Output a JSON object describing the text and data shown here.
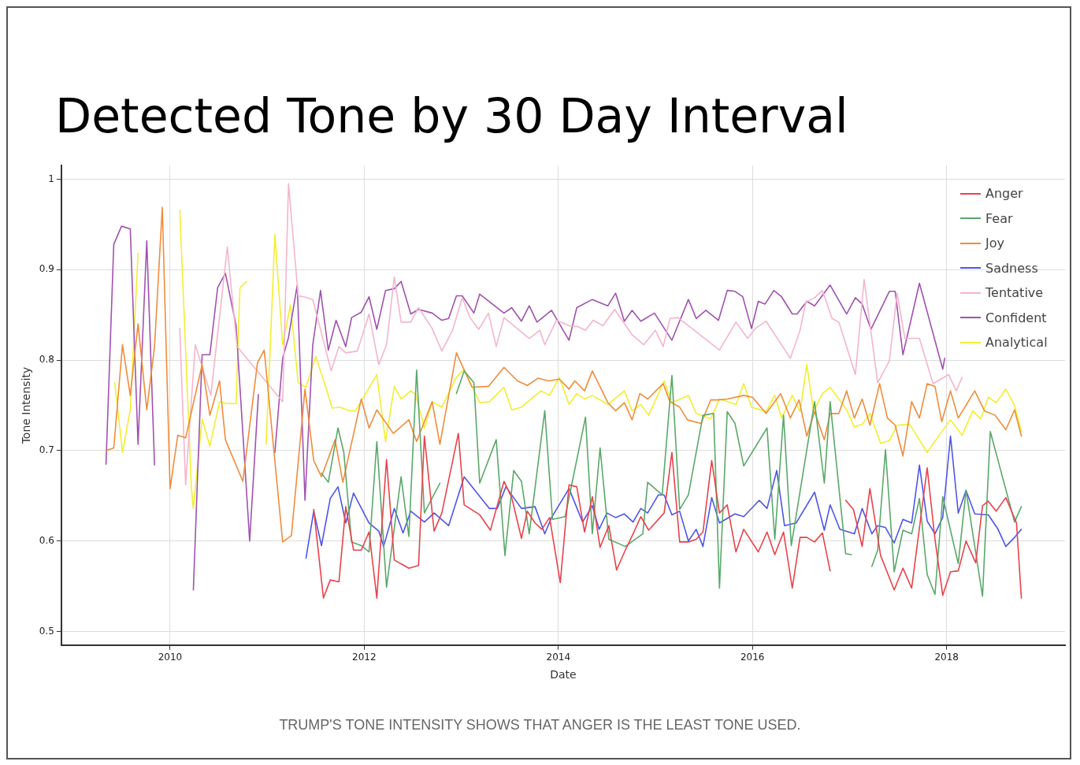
{
  "chart_data": {
    "type": "line",
    "title": "Detected Tone by 30 Day Interval",
    "xlabel": "Date",
    "ylabel": "Tone Intensity",
    "annotations": [
      "TRUMP'S TONE INTENSITY SHOWS THAT ANGER IS THE LEAST TONE USED."
    ],
    "xlim": [
      2008.88,
      2019.22
    ],
    "xticks": [
      2010,
      2012,
      2014,
      2016,
      2018
    ],
    "ylim": [
      0.485,
      1.015
    ],
    "yticks": [
      0.5,
      0.6,
      0.7,
      0.8,
      0.9,
      1
    ],
    "grid": true,
    "legend": "top right",
    "marker": "none",
    "line_style": "solid",
    "series": [
      {
        "name": "Anger",
        "color": "#e8434a",
        "x": [
          2011.48,
          2011.58,
          2011.65,
          2011.74,
          2011.81,
          2011.89,
          2011.97,
          2012.05,
          2012.13,
          2012.23,
          2012.31,
          2012.46,
          2012.56,
          2012.62,
          2012.72,
          2012.8,
          2012.97,
          2013.03,
          2013.19,
          2013.3,
          2013.44,
          2013.52,
          2013.62,
          2013.68,
          2013.76,
          2013.83,
          2013.91,
          2014.02,
          2014.11,
          2014.19,
          2014.27,
          2014.35,
          2014.43,
          2014.52,
          2014.6,
          2014.69,
          2014.77,
          2014.85,
          2014.93,
          2015.09,
          2015.17,
          2015.25,
          2015.34,
          2015.42,
          2015.49,
          2015.58,
          2015.66,
          2015.74,
          2015.83,
          2015.91,
          2016.06,
          2016.15,
          2016.23,
          2016.32,
          2016.41,
          2016.49,
          2016.56,
          2016.64,
          2016.72,
          2016.8,
          2016.88,
          2016.96,
          2017.04,
          2017.13,
          2017.21,
          2017.32,
          2017.46,
          2017.55,
          2017.64,
          2017.8,
          2017.88,
          2017.96,
          2018.04,
          2018.12,
          2018.2,
          2018.3,
          2018.37,
          2018.43,
          2018.51,
          2018.61,
          2018.72,
          2018.77
        ],
        "values": [
          0.635,
          0.537,
          0.557,
          0.555,
          0.638,
          0.59,
          0.59,
          0.61,
          0.537,
          0.69,
          0.579,
          0.57,
          0.573,
          0.716,
          0.611,
          0.631,
          0.719,
          0.64,
          0.629,
          0.612,
          0.666,
          0.648,
          0.603,
          0.633,
          0.62,
          0.613,
          0.626,
          0.554,
          0.662,
          0.66,
          0.61,
          0.649,
          0.593,
          0.617,
          0.568,
          0.59,
          0.608,
          0.627,
          0.612,
          0.631,
          0.698,
          0.599,
          0.599,
          0.602,
          0.61,
          0.689,
          0.631,
          0.64,
          0.588,
          0.613,
          0.588,
          0.61,
          0.585,
          0.61,
          0.548,
          0.604,
          0.604,
          0.599,
          0.609,
          0.567,
          null,
          0.645,
          0.635,
          0.594,
          0.658,
          0.584,
          0.546,
          0.57,
          0.548,
          0.681,
          0.602,
          0.54,
          0.566,
          0.567,
          0.6,
          0.576,
          0.639,
          0.644,
          0.633,
          0.648,
          0.62,
          0.537
        ]
      },
      {
        "name": "Fear",
        "color": "#5aa86a",
        "x": [
          2011.56,
          2011.63,
          2011.73,
          2011.79,
          2011.87,
          2011.97,
          2012.05,
          2012.13,
          2012.23,
          2012.38,
          2012.46,
          2012.54,
          2012.62,
          2012.78,
          2012.87,
          2012.95,
          2013.03,
          2013.13,
          2013.19,
          2013.36,
          2013.45,
          2013.54,
          2013.62,
          2013.7,
          2013.86,
          2013.94,
          2014.07,
          2014.28,
          2014.35,
          2014.43,
          2014.52,
          2014.69,
          2014.87,
          2014.92,
          2015.07,
          2015.17,
          2015.25,
          2015.34,
          2015.49,
          2015.6,
          2015.66,
          2015.74,
          2015.82,
          2015.91,
          2016.15,
          2016.23,
          2016.32,
          2016.4,
          2016.64,
          2016.74,
          2016.8,
          2016.96,
          2017.02,
          2017.12,
          2017.23,
          2017.29,
          2017.37,
          2017.46,
          2017.55,
          2017.64,
          2017.72,
          2017.8,
          2017.88,
          2017.96,
          2018.12,
          2018.2,
          2018.37,
          2018.45,
          2018.7,
          2018.77
        ],
        "values": [
          0.675,
          0.665,
          0.725,
          0.698,
          0.599,
          0.595,
          0.588,
          0.71,
          0.549,
          0.671,
          0.605,
          0.789,
          0.631,
          0.664,
          null,
          0.763,
          0.788,
          0.775,
          0.664,
          0.712,
          0.584,
          0.678,
          0.666,
          0.608,
          0.744,
          0.624,
          0.627,
          0.737,
          0.608,
          0.703,
          0.602,
          0.594,
          0.608,
          0.665,
          0.651,
          0.783,
          0.635,
          0.651,
          0.739,
          0.741,
          0.548,
          0.743,
          0.73,
          0.683,
          0.725,
          0.602,
          0.739,
          0.595,
          0.754,
          0.664,
          0.754,
          0.586,
          0.585,
          null,
          0.572,
          0.59,
          0.701,
          0.566,
          0.612,
          0.608,
          0.647,
          0.563,
          0.541,
          0.649,
          0.575,
          0.656,
          0.539,
          0.721,
          0.621,
          0.638
        ]
      },
      {
        "name": "Joy",
        "color": "#f08c3c",
        "x": [
          2009.34,
          2009.42,
          2009.51,
          2009.59,
          2009.67,
          2009.76,
          2009.84,
          2009.92,
          2010,
          2010.08,
          2010.16,
          2010.33,
          2010.41,
          2010.51,
          2010.57,
          2010.75,
          2010.9,
          2010.97,
          2011.16,
          2011.25,
          2011.39,
          2011.48,
          2011.56,
          2011.7,
          2011.78,
          2011.97,
          2012.05,
          2012.13,
          2012.3,
          2012.46,
          2012.54,
          2012.7,
          2012.78,
          2012.95,
          2013.11,
          2013.28,
          2013.44,
          2013.58,
          2013.68,
          2013.79,
          2013.9,
          2014.01,
          2014.11,
          2014.17,
          2014.27,
          2014.35,
          2014.51,
          2014.59,
          2014.68,
          2014.76,
          2014.84,
          2014.92,
          2015.08,
          2015.15,
          2015.25,
          2015.33,
          2015.47,
          2015.57,
          2015.64,
          2015.74,
          2015.91,
          2016,
          2016.14,
          2016.29,
          2016.39,
          2016.48,
          2016.56,
          2016.64,
          2016.74,
          2016.8,
          2016.89,
          2016.97,
          2017.05,
          2017.13,
          2017.21,
          2017.31,
          2017.39,
          2017.47,
          2017.55,
          2017.64,
          2017.72,
          2017.8,
          2017.88,
          2017.95,
          2018.04,
          2018.12,
          2018.29,
          2018.39,
          2018.5,
          2018.61,
          2018.7,
          2018.77
        ],
        "values": [
          0.7,
          0.703,
          0.817,
          0.761,
          0.84,
          0.745,
          0.815,
          0.969,
          0.658,
          0.717,
          0.714,
          0.795,
          0.739,
          0.777,
          0.712,
          0.666,
          0.797,
          0.811,
          0.599,
          0.606,
          0.768,
          0.689,
          0.671,
          0.712,
          0.665,
          0.757,
          0.725,
          0.745,
          0.719,
          0.734,
          0.71,
          0.754,
          0.707,
          0.808,
          0.77,
          0.771,
          0.792,
          0.777,
          0.772,
          0.78,
          0.777,
          0.779,
          0.768,
          0.777,
          0.766,
          0.788,
          0.753,
          0.744,
          0.753,
          0.734,
          0.763,
          0.757,
          0.774,
          0.754,
          0.748,
          0.734,
          0.73,
          0.756,
          0.756,
          0.757,
          0.761,
          0.759,
          0.741,
          0.763,
          0.736,
          0.756,
          0.716,
          0.743,
          0.712,
          0.741,
          0.741,
          0.766,
          0.736,
          0.757,
          0.728,
          0.774,
          0.736,
          0.728,
          0.694,
          0.754,
          0.736,
          0.774,
          0.771,
          0.732,
          0.766,
          0.736,
          0.766,
          0.744,
          0.739,
          0.723,
          0.745,
          0.716
        ]
      },
      {
        "name": "Sadness",
        "color": "#4f55e8",
        "x": [
          2011.4,
          2011.48,
          2011.56,
          2011.65,
          2011.73,
          2011.81,
          2011.89,
          2012.05,
          2012.15,
          2012.2,
          2012.31,
          2012.4,
          2012.48,
          2012.62,
          2012.72,
          2012.87,
          2013.03,
          2013.29,
          2013.37,
          2013.46,
          2013.62,
          2013.76,
          2013.86,
          2013.93,
          2014.11,
          2014.25,
          2014.35,
          2014.42,
          2014.5,
          2014.59,
          2014.68,
          2014.77,
          2014.85,
          2014.92,
          2015.03,
          2015.09,
          2015.17,
          2015.25,
          2015.34,
          2015.42,
          2015.49,
          2015.58,
          2015.66,
          2015.82,
          2015.91,
          2016.07,
          2016.15,
          2016.25,
          2016.33,
          2016.45,
          2016.64,
          2016.74,
          2016.8,
          2016.9,
          2017.05,
          2017.13,
          2017.23,
          2017.29,
          2017.37,
          2017.46,
          2017.55,
          2017.64,
          2017.72,
          2017.8,
          2017.88,
          2017.96,
          2018.04,
          2018.12,
          2018.2,
          2018.29,
          2018.43,
          2018.53,
          2018.61,
          2018.7,
          2018.77
        ],
        "values": [
          0.581,
          0.633,
          0.595,
          0.647,
          0.66,
          0.62,
          0.653,
          0.62,
          0.611,
          0.594,
          0.636,
          0.609,
          0.633,
          0.621,
          0.631,
          0.617,
          0.671,
          0.636,
          0.636,
          0.66,
          0.636,
          0.638,
          0.608,
          0.626,
          0.658,
          0.621,
          0.639,
          0.613,
          0.631,
          0.626,
          0.63,
          0.621,
          0.636,
          0.631,
          0.651,
          0.651,
          0.629,
          0.633,
          0.6,
          0.613,
          0.594,
          0.648,
          0.62,
          0.63,
          0.627,
          0.645,
          0.636,
          0.678,
          0.617,
          0.62,
          0.654,
          0.612,
          0.64,
          0.613,
          0.608,
          0.636,
          0.608,
          0.617,
          0.615,
          0.598,
          0.624,
          0.62,
          0.684,
          0.622,
          0.608,
          0.626,
          0.716,
          0.631,
          0.656,
          0.63,
          0.629,
          0.613,
          0.594,
          0.604,
          0.613
        ]
      },
      {
        "name": "Tentative",
        "color": "#f5b5cc",
        "x": [
          2010.1,
          2010.16,
          2010.26,
          2010.42,
          2010.59,
          2010.69,
          2011.16,
          2011.22,
          2011.32,
          2011.38,
          2011.47,
          2011.66,
          2011.74,
          2011.81,
          2011.93,
          2012.05,
          2012.15,
          2012.23,
          2012.31,
          2012.38,
          2012.48,
          2012.56,
          2012.7,
          2012.8,
          2012.91,
          2013.01,
          2013.09,
          2013.18,
          2013.28,
          2013.36,
          2013.44,
          2013.7,
          2013.81,
          2013.86,
          2013.98,
          2014.11,
          2014.2,
          2014.28,
          2014.36,
          2014.46,
          2014.58,
          2014.76,
          2014.88,
          2015,
          2015.08,
          2015.15,
          2015.23,
          2015.34,
          2015.66,
          2015.83,
          2015.95,
          2016.03,
          2016.14,
          2016.25,
          2016.39,
          2016.49,
          2016.55,
          2016.64,
          2016.72,
          2016.82,
          2016.89,
          2017.06,
          2017.15,
          2017.29,
          2017.41,
          2017.49,
          2017.57,
          2017.72,
          2017.86,
          2018.02,
          2018.1,
          2018.16
        ],
        "values": [
          0.835,
          0.662,
          0.817,
          0.761,
          0.925,
          0.815,
          0.754,
          0.995,
          0.871,
          0.87,
          0.867,
          0.788,
          0.815,
          0.808,
          0.81,
          0.851,
          0.795,
          0.817,
          0.892,
          0.842,
          0.842,
          0.858,
          0.835,
          0.81,
          0.833,
          0.869,
          0.847,
          0.834,
          0.852,
          0.815,
          0.847,
          0.824,
          0.833,
          0.817,
          0.844,
          0.838,
          0.837,
          0.833,
          0.844,
          0.838,
          0.856,
          0.828,
          0.817,
          0.833,
          0.815,
          0.846,
          0.847,
          0.838,
          0.811,
          0.842,
          0.824,
          0.835,
          0.843,
          0.825,
          0.802,
          0.833,
          0.864,
          0.869,
          0.877,
          0.846,
          0.842,
          0.784,
          0.889,
          0.775,
          0.799,
          0.874,
          0.824,
          0.824,
          0.774,
          0.784,
          0.766,
          0.781
        ]
      },
      {
        "name": "Confident",
        "color": "#a052b0",
        "x": [
          2009.34,
          2009.42,
          2009.5,
          2009.59,
          2009.67,
          2009.76,
          2009.84,
          2010.04,
          2010.24,
          2010.33,
          2010.41,
          2010.49,
          2010.57,
          2010.68,
          2010.82,
          2010.91,
          2011,
          2011.08,
          2011.16,
          2011.22,
          2011.31,
          2011.39,
          2011.47,
          2011.55,
          2011.63,
          2011.71,
          2011.81,
          2011.87,
          2011.97,
          2012.05,
          2012.13,
          2012.22,
          2012.31,
          2012.38,
          2012.48,
          2012.56,
          2012.7,
          2012.8,
          2012.87,
          2012.95,
          2013.01,
          2013.13,
          2013.19,
          2013.44,
          2013.52,
          2013.62,
          2013.7,
          2013.78,
          2013.93,
          2014.11,
          2014.19,
          2014.35,
          2014.51,
          2014.59,
          2014.68,
          2014.76,
          2014.85,
          2014.99,
          2015.17,
          2015.34,
          2015.42,
          2015.52,
          2015.65,
          2015.74,
          2015.82,
          2015.9,
          2015.99,
          2016.06,
          2016.13,
          2016.22,
          2016.3,
          2016.41,
          2016.46,
          2016.56,
          2016.64,
          2016.8,
          2016.97,
          2017.06,
          2017.13,
          2017.22,
          2017.41,
          2017.47,
          2017.55,
          2017.72,
          2017.96,
          2017.98
        ],
        "values": [
          0.685,
          0.928,
          0.948,
          0.945,
          0.707,
          0.932,
          0.684,
          null,
          0.546,
          0.806,
          0.806,
          0.88,
          0.896,
          0.838,
          0.6,
          0.762,
          null,
          0.698,
          0.802,
          0.825,
          0.883,
          0.645,
          0.817,
          0.877,
          0.811,
          0.844,
          0.815,
          0.847,
          0.853,
          0.87,
          0.834,
          0.877,
          0.879,
          0.887,
          0.851,
          0.856,
          0.852,
          0.844,
          0.846,
          0.871,
          0.871,
          0.852,
          0.873,
          0.852,
          0.858,
          0.843,
          0.86,
          0.842,
          0.855,
          0.822,
          0.858,
          0.867,
          0.86,
          0.874,
          0.843,
          0.855,
          0.843,
          0.852,
          0.822,
          0.867,
          0.846,
          0.855,
          0.844,
          0.877,
          0.876,
          0.87,
          0.835,
          0.865,
          0.862,
          0.877,
          0.87,
          0.851,
          0.851,
          0.865,
          0.86,
          0.883,
          0.851,
          0.869,
          0.862,
          0.834,
          0.876,
          0.876,
          0.806,
          0.885,
          0.79,
          0.802
        ]
      },
      {
        "name": "Analytical",
        "color": "#f2ef30",
        "x": [
          2009.43,
          2009.51,
          2009.59,
          2009.67,
          2009.9,
          2010.1,
          2010.22,
          2010.24,
          2010.33,
          2010.41,
          2010.51,
          2010.59,
          2010.68,
          2010.72,
          2010.79,
          2010.9,
          2010.99,
          2011.08,
          2011.16,
          2011.24,
          2011.32,
          2011.4,
          2011.5,
          2011.59,
          2011.67,
          2011.75,
          2011.85,
          2011.91,
          2012.13,
          2012.22,
          2012.31,
          2012.38,
          2012.48,
          2012.53,
          2012.62,
          2012.7,
          2012.8,
          2012.95,
          2013.03,
          2013.19,
          2013.29,
          2013.44,
          2013.52,
          2013.62,
          2013.82,
          2013.91,
          2014.01,
          2014.11,
          2014.19,
          2014.27,
          2014.35,
          2014.51,
          2014.68,
          2014.76,
          2014.85,
          2014.93,
          2015.09,
          2015.17,
          2015.34,
          2015.42,
          2015.57,
          2015.66,
          2015.83,
          2015.91,
          2015.99,
          2016.14,
          2016.23,
          2016.3,
          2016.41,
          2016.49,
          2016.56,
          2016.63,
          2016.72,
          2016.8,
          2016.89,
          2016.97,
          2017.05,
          2017.13,
          2017.21,
          2017.32,
          2017.41,
          2017.49,
          2017.62,
          2017.8,
          2017.89,
          2018.04,
          2018.16,
          2018.27,
          2018.35,
          2018.43,
          2018.51,
          2018.61,
          2018.7,
          2018.77
        ],
        "values": [
          0.775,
          0.698,
          0.745,
          0.918,
          null,
          0.966,
          0.658,
          0.636,
          0.735,
          0.705,
          0.754,
          0.752,
          0.752,
          0.88,
          0.887,
          null,
          0.707,
          0.939,
          0.817,
          0.861,
          0.775,
          0.77,
          0.804,
          0.775,
          0.747,
          0.748,
          0.744,
          0.744,
          0.784,
          0.71,
          0.771,
          0.757,
          0.766,
          0.762,
          0.725,
          0.754,
          0.748,
          0.781,
          0.79,
          0.753,
          0.754,
          0.77,
          0.745,
          0.748,
          0.766,
          0.761,
          0.781,
          0.751,
          0.763,
          0.757,
          0.761,
          0.751,
          0.766,
          0.744,
          0.751,
          0.739,
          0.777,
          0.753,
          0.761,
          0.741,
          0.735,
          0.757,
          0.751,
          0.774,
          0.748,
          0.743,
          0.761,
          0.736,
          0.761,
          0.743,
          0.795,
          0.743,
          0.763,
          0.77,
          0.757,
          0.745,
          0.726,
          0.729,
          0.741,
          0.708,
          0.711,
          0.728,
          0.729,
          0.698,
          0.712,
          0.734,
          0.717,
          0.744,
          0.735,
          0.759,
          0.753,
          0.768,
          0.75,
          0.721
        ]
      }
    ]
  }
}
